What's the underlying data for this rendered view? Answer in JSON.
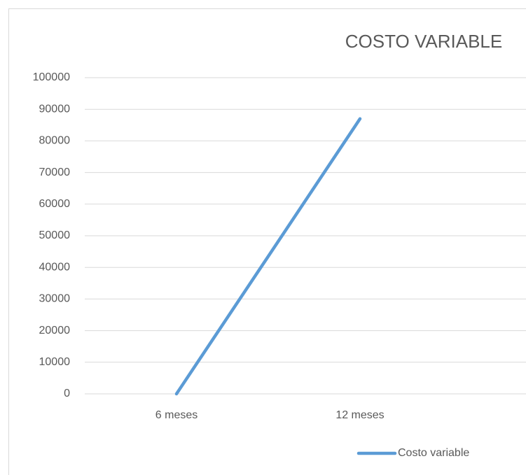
{
  "chart_data": {
    "type": "line",
    "title": "COSTO VARIABLE",
    "categories": [
      "6 meses",
      "12 meses"
    ],
    "series": [
      {
        "name": "Costo variable",
        "color": "#5b9bd5",
        "values": [
          0,
          87000
        ]
      }
    ],
    "ylim": [
      0,
      100000
    ],
    "yticks": [
      0,
      10000,
      20000,
      30000,
      40000,
      50000,
      60000,
      70000,
      80000,
      90000,
      100000
    ],
    "grid": true,
    "legend": "bottom"
  }
}
